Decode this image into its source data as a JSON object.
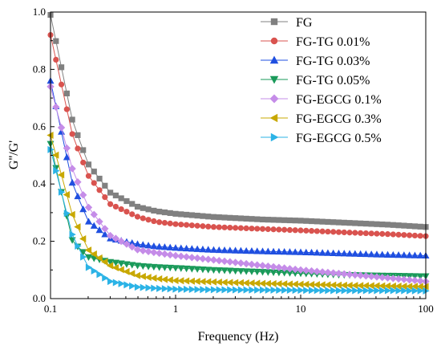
{
  "chart_data": {
    "type": "line",
    "xscale": "log",
    "xlim": [
      0.1,
      100
    ],
    "ylim": [
      0.0,
      1.0
    ],
    "xlabel": "Frequency (Hz)",
    "ylabel": "G''/G'",
    "xticks": [
      "0.1",
      "1",
      "10",
      "100"
    ],
    "yticks": [
      "0.0",
      "0.2",
      "0.4",
      "0.6",
      "0.8",
      "1.0"
    ],
    "legend_position": "top-right",
    "grid": false,
    "series": [
      {
        "name": "FG",
        "color": "#808080",
        "marker": "square",
        "points": [
          [
            0.1,
            0.99
          ],
          [
            0.15,
            0.62
          ],
          [
            0.2,
            0.47
          ],
          [
            0.3,
            0.37
          ],
          [
            0.5,
            0.32
          ],
          [
            0.7,
            0.305
          ],
          [
            1,
            0.296
          ],
          [
            2,
            0.285
          ],
          [
            5,
            0.276
          ],
          [
            10,
            0.272
          ],
          [
            20,
            0.266
          ],
          [
            50,
            0.258
          ],
          [
            100,
            0.25
          ]
        ]
      },
      {
        "name": "FG-TG 0.01%",
        "color": "#d9534f",
        "marker": "circle",
        "points": [
          [
            0.1,
            0.92
          ],
          [
            0.15,
            0.57
          ],
          [
            0.2,
            0.43
          ],
          [
            0.3,
            0.33
          ],
          [
            0.5,
            0.285
          ],
          [
            0.7,
            0.268
          ],
          [
            1,
            0.26
          ],
          [
            2,
            0.25
          ],
          [
            5,
            0.243
          ],
          [
            10,
            0.238
          ],
          [
            20,
            0.232
          ],
          [
            50,
            0.225
          ],
          [
            100,
            0.218
          ]
        ]
      },
      {
        "name": "FG-TG 0.03%",
        "color": "#1f4fe0",
        "marker": "triangle-up",
        "points": [
          [
            0.1,
            0.76
          ],
          [
            0.15,
            0.4
          ],
          [
            0.2,
            0.27
          ],
          [
            0.3,
            0.21
          ],
          [
            0.5,
            0.19
          ],
          [
            0.7,
            0.182
          ],
          [
            1,
            0.177
          ],
          [
            2,
            0.17
          ],
          [
            5,
            0.165
          ],
          [
            10,
            0.162
          ],
          [
            20,
            0.158
          ],
          [
            50,
            0.153
          ],
          [
            100,
            0.15
          ]
        ]
      },
      {
        "name": "FG-TG 0.05%",
        "color": "#1a9a5a",
        "marker": "triangle-down",
        "points": [
          [
            0.1,
            0.54
          ],
          [
            0.15,
            0.2
          ],
          [
            0.2,
            0.145
          ],
          [
            0.3,
            0.128
          ],
          [
            0.5,
            0.115
          ],
          [
            0.7,
            0.11
          ],
          [
            1,
            0.107
          ],
          [
            2,
            0.1
          ],
          [
            5,
            0.093
          ],
          [
            10,
            0.088
          ],
          [
            20,
            0.083
          ],
          [
            50,
            0.08
          ],
          [
            100,
            0.078
          ]
        ]
      },
      {
        "name": "FG-EGCG 0.1%",
        "color": "#c58ce8",
        "marker": "diamond",
        "points": [
          [
            0.1,
            0.74
          ],
          [
            0.15,
            0.45
          ],
          [
            0.2,
            0.32
          ],
          [
            0.3,
            0.22
          ],
          [
            0.5,
            0.17
          ],
          [
            0.7,
            0.16
          ],
          [
            1,
            0.15
          ],
          [
            2,
            0.135
          ],
          [
            5,
            0.115
          ],
          [
            10,
            0.1
          ],
          [
            20,
            0.088
          ],
          [
            50,
            0.072
          ],
          [
            100,
            0.06
          ]
        ]
      },
      {
        "name": "FG-EGCG 0.3%",
        "color": "#c8a800",
        "marker": "triangle-left",
        "points": [
          [
            0.1,
            0.57
          ],
          [
            0.15,
            0.29
          ],
          [
            0.2,
            0.17
          ],
          [
            0.3,
            0.115
          ],
          [
            0.5,
            0.08
          ],
          [
            0.7,
            0.07
          ],
          [
            1,
            0.063
          ],
          [
            2,
            0.058
          ],
          [
            5,
            0.053
          ],
          [
            10,
            0.05
          ],
          [
            20,
            0.047
          ],
          [
            50,
            0.044
          ],
          [
            100,
            0.042
          ]
        ]
      },
      {
        "name": "FG-EGCG 0.5%",
        "color": "#2bb3e6",
        "marker": "triangle-right",
        "points": [
          [
            0.1,
            0.52
          ],
          [
            0.15,
            0.22
          ],
          [
            0.2,
            0.11
          ],
          [
            0.3,
            0.06
          ],
          [
            0.5,
            0.04
          ],
          [
            0.7,
            0.036
          ],
          [
            1,
            0.033
          ],
          [
            2,
            0.031
          ],
          [
            5,
            0.03
          ],
          [
            10,
            0.029
          ],
          [
            20,
            0.028
          ],
          [
            50,
            0.028
          ],
          [
            100,
            0.027
          ]
        ]
      }
    ]
  }
}
